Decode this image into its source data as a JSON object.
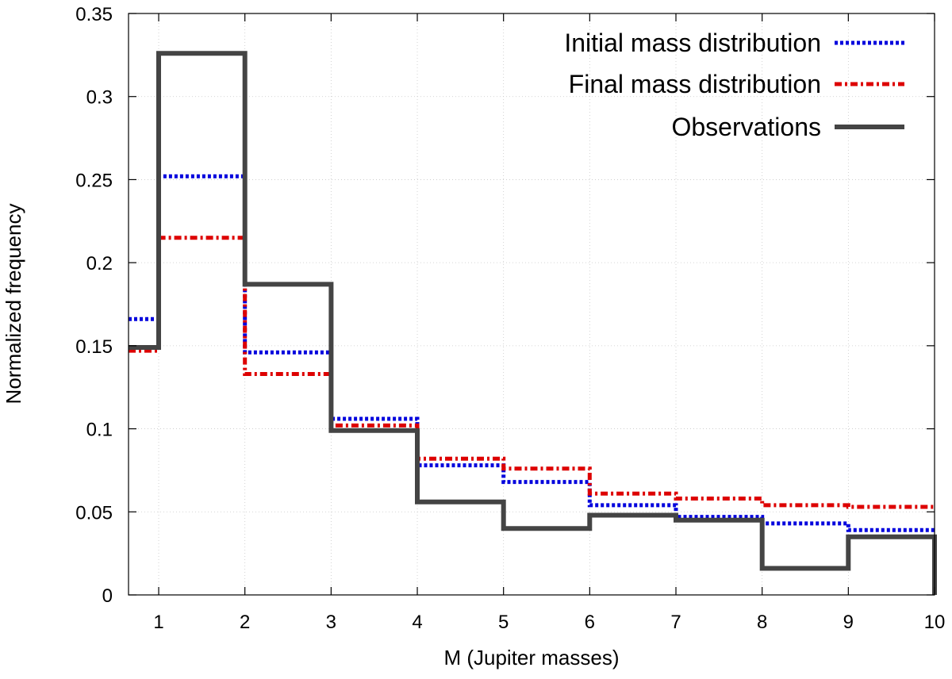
{
  "chart_data": {
    "type": "line",
    "subtype": "step-histogram",
    "title": "",
    "xlabel": "M (Jupiter masses)",
    "ylabel": "Normalized frequency",
    "xlim": [
      0.65,
      10
    ],
    "ylim": [
      0,
      0.35
    ],
    "xticks": [
      1,
      2,
      3,
      4,
      5,
      6,
      7,
      8,
      9,
      10
    ],
    "xtick_labels": [
      "1",
      "2",
      "3",
      "4",
      "5",
      "6",
      "7",
      "8",
      "9",
      "10"
    ],
    "yticks": [
      0,
      0.05,
      0.1,
      0.15,
      0.2,
      0.25,
      0.3,
      0.35
    ],
    "ytick_labels": [
      "0",
      "0.05",
      "0.1",
      "0.15",
      "0.2",
      "0.25",
      "0.3",
      "0.35"
    ],
    "grid": true,
    "legend_position": "top-right",
    "bin_edges": [
      0.65,
      1,
      2,
      3,
      4,
      5,
      6,
      7,
      8,
      9,
      10
    ],
    "series": [
      {
        "name": "Initial mass distribution",
        "style": "dotted",
        "color": "#0000dd",
        "values": [
          0.166,
          0.252,
          0.146,
          0.106,
          0.078,
          0.068,
          0.054,
          0.047,
          0.043,
          0.039
        ]
      },
      {
        "name": "Final mass distribution",
        "style": "dash-dot",
        "color": "#dd0000",
        "values": [
          0.147,
          0.215,
          0.133,
          0.102,
          0.082,
          0.076,
          0.061,
          0.058,
          0.054,
          0.053
        ]
      },
      {
        "name": "Observations",
        "style": "solid",
        "color": "#444444",
        "values": [
          0.149,
          0.326,
          0.187,
          0.099,
          0.056,
          0.04,
          0.048,
          0.045,
          0.016,
          0.035
        ]
      }
    ]
  }
}
